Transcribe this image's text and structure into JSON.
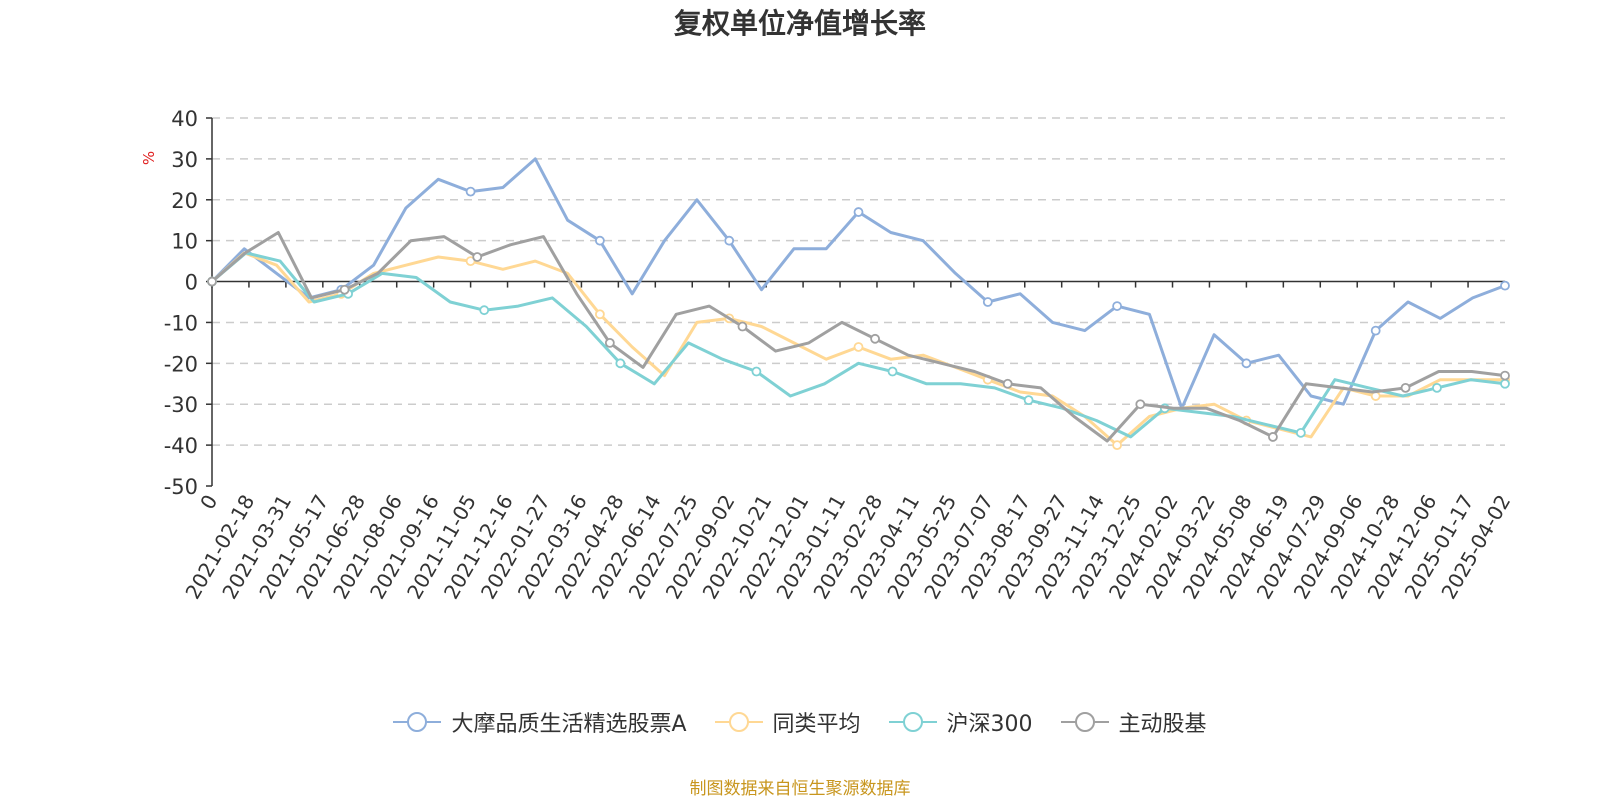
{
  "chart_data": {
    "type": "line",
    "title": "复权单位净值增长率",
    "ylabel": "%",
    "ylim": [
      -50,
      40
    ],
    "yticks": [
      40,
      30,
      20,
      10,
      0,
      -10,
      -20,
      -30,
      -40,
      -50
    ],
    "grid": true,
    "legend_position": "bottom",
    "x_tick_labels": [
      "0",
      "2021-02-18",
      "2021-03-31",
      "2021-05-17",
      "2021-06-28",
      "2021-08-06",
      "2021-09-16",
      "2021-11-05",
      "2021-12-16",
      "2022-01-27",
      "2022-03-16",
      "2022-04-28",
      "2022-06-14",
      "2022-07-25",
      "2022-09-02",
      "2022-10-21",
      "2022-12-01",
      "2023-01-11",
      "2023-02-28",
      "2023-04-11",
      "2023-05-25",
      "2023-07-07",
      "2023-08-17",
      "2023-09-27",
      "2023-11-14",
      "2023-12-25",
      "2024-02-02",
      "2024-03-22",
      "2024-05-08",
      "2024-06-19",
      "2024-07-29",
      "2024-09-06",
      "2024-10-28",
      "2024-12-06",
      "2025-01-17",
      "2025-04-02"
    ],
    "series": [
      {
        "name": "大摩品质生活精选股票A",
        "color": "#8eaedb",
        "values": [
          0,
          8,
          2,
          -4,
          -2,
          4,
          18,
          25,
          22,
          23,
          30,
          15,
          10,
          -3,
          10,
          20,
          10,
          -2,
          8,
          8,
          17,
          12,
          10,
          2,
          -5,
          -3,
          -10,
          -12,
          -6,
          -8,
          -31,
          -13,
          -20,
          -18,
          -28,
          -30,
          -12,
          -5,
          -9,
          -4,
          -1
        ]
      },
      {
        "name": "同类平均",
        "color": "#ffd894",
        "values": [
          0,
          7,
          4,
          -5,
          -3,
          2,
          4,
          6,
          5,
          3,
          5,
          2,
          -8,
          -16,
          -23,
          -10,
          -9,
          -11,
          -15,
          -19,
          -16,
          -19,
          -18,
          -21,
          -24,
          -27,
          -28,
          -33,
          -40,
          -33,
          -31,
          -30,
          -34,
          -36,
          -38,
          -26,
          -28,
          -28,
          -24,
          -24,
          -24
        ]
      },
      {
        "name": "沪深300",
        "color": "#7fd1d4",
        "values": [
          0,
          7,
          5,
          -5,
          -3,
          2,
          1,
          -5,
          -7,
          -6,
          -4,
          -11,
          -20,
          -25,
          -15,
          -19,
          -22,
          -28,
          -25,
          -20,
          -22,
          -25,
          -25,
          -26,
          -29,
          -31,
          -34,
          -38,
          -31,
          -32,
          -33,
          -35,
          -37,
          -24,
          -26,
          -28,
          -26,
          -24,
          -25
        ]
      },
      {
        "name": "主动股基",
        "color": "#a0a0a0",
        "values": [
          0,
          7,
          12,
          -4,
          -2,
          2,
          10,
          11,
          6,
          9,
          11,
          -3,
          -15,
          -21,
          -8,
          -6,
          -11,
          -17,
          -15,
          -10,
          -14,
          -18,
          -20,
          -22,
          -25,
          -26,
          -33,
          -39,
          -30,
          -31,
          -31,
          -34,
          -38,
          -25,
          -26,
          -27,
          -26,
          -22,
          -22,
          -23
        ]
      }
    ]
  },
  "source_note": "制图数据来自恒生聚源数据库"
}
